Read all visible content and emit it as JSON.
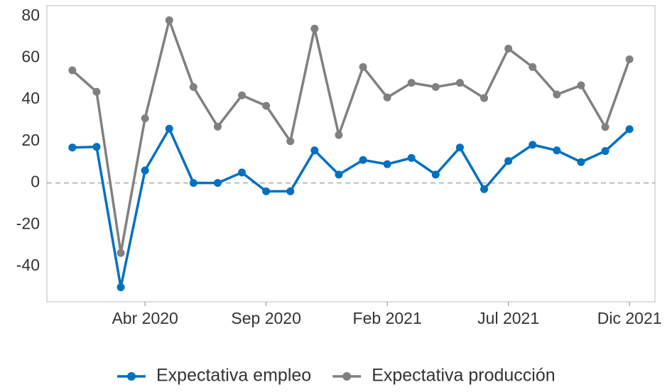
{
  "chart_data": {
    "type": "line",
    "categories": [
      null,
      null,
      null,
      "Abr 2020",
      null,
      null,
      null,
      null,
      "Sep 2020",
      null,
      null,
      null,
      null,
      "Feb 2021",
      null,
      null,
      null,
      null,
      "Jul 2021",
      null,
      null,
      null,
      null,
      "Dic 2021"
    ],
    "series": [
      {
        "name": "Expectativa empleo",
        "color": "#0070c0",
        "values": [
          17,
          17.3,
          -50,
          6,
          26,
          0,
          0,
          5,
          -4,
          -4,
          15.6,
          4,
          11,
          9,
          12,
          4,
          17,
          -3,
          10.5,
          18.3,
          15.6,
          10,
          15.3,
          25.8
        ]
      },
      {
        "name": "Expectativa producción",
        "color": "#808080",
        "values": [
          54,
          43.7,
          -33.6,
          31,
          78,
          46,
          27,
          42,
          37,
          20,
          74,
          23,
          55.6,
          41,
          48,
          46,
          48,
          40.7,
          64.4,
          55.6,
          42.4,
          46.8,
          26.8,
          59.3
        ]
      }
    ],
    "ylim": [
      -57,
      85
    ],
    "yticks": [
      -40,
      -20,
      0,
      20,
      40,
      60,
      80
    ],
    "reference_line": 0,
    "grid": false,
    "legend": "bottom"
  }
}
